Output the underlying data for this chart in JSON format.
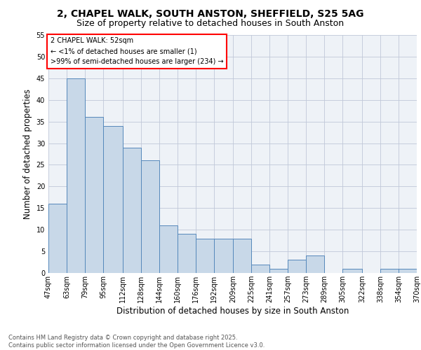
{
  "title1": "2, CHAPEL WALK, SOUTH ANSTON, SHEFFIELD, S25 5AG",
  "title2": "Size of property relative to detached houses in South Anston",
  "xlabel": "Distribution of detached houses by size in South Anston",
  "ylabel": "Number of detached properties",
  "bar_values": [
    16,
    45,
    36,
    34,
    29,
    26,
    11,
    9,
    8,
    8,
    8,
    2,
    1,
    3,
    4,
    0,
    1,
    0,
    1,
    1
  ],
  "bin_edges": [
    47,
    63,
    79,
    95,
    112,
    128,
    144,
    160,
    176,
    192,
    209,
    225,
    241,
    257,
    273,
    289,
    305,
    322,
    338,
    354,
    370
  ],
  "tick_labels": [
    "47sqm",
    "63sqm",
    "79sqm",
    "95sqm",
    "112sqm",
    "128sqm",
    "144sqm",
    "160sqm",
    "176sqm",
    "192sqm",
    "209sqm",
    "225sqm",
    "241sqm",
    "257sqm",
    "273sqm",
    "289sqm",
    "305sqm",
    "322sqm",
    "338sqm",
    "354sqm",
    "370sqm"
  ],
  "bar_facecolor": "#c8d8e8",
  "bar_edgecolor": "#5588bb",
  "bg_color": "#eef2f7",
  "annotation_text": "2 CHAPEL WALK: 52sqm\n← <1% of detached houses are smaller (1)\n>99% of semi-detached houses are larger (234) →",
  "annotation_box_edgecolor": "red",
  "footer_text": "Contains HM Land Registry data © Crown copyright and database right 2025.\nContains public sector information licensed under the Open Government Licence v3.0.",
  "ylim": [
    0,
    55
  ],
  "yticks": [
    0,
    5,
    10,
    15,
    20,
    25,
    30,
    35,
    40,
    45,
    50,
    55
  ],
  "grid_color": "#c0c8d8",
  "title1_fontsize": 10,
  "title2_fontsize": 9,
  "xlabel_fontsize": 8.5,
  "ylabel_fontsize": 8.5,
  "tick_fontsize": 7,
  "footer_fontsize": 6,
  "annotation_fontsize": 7
}
